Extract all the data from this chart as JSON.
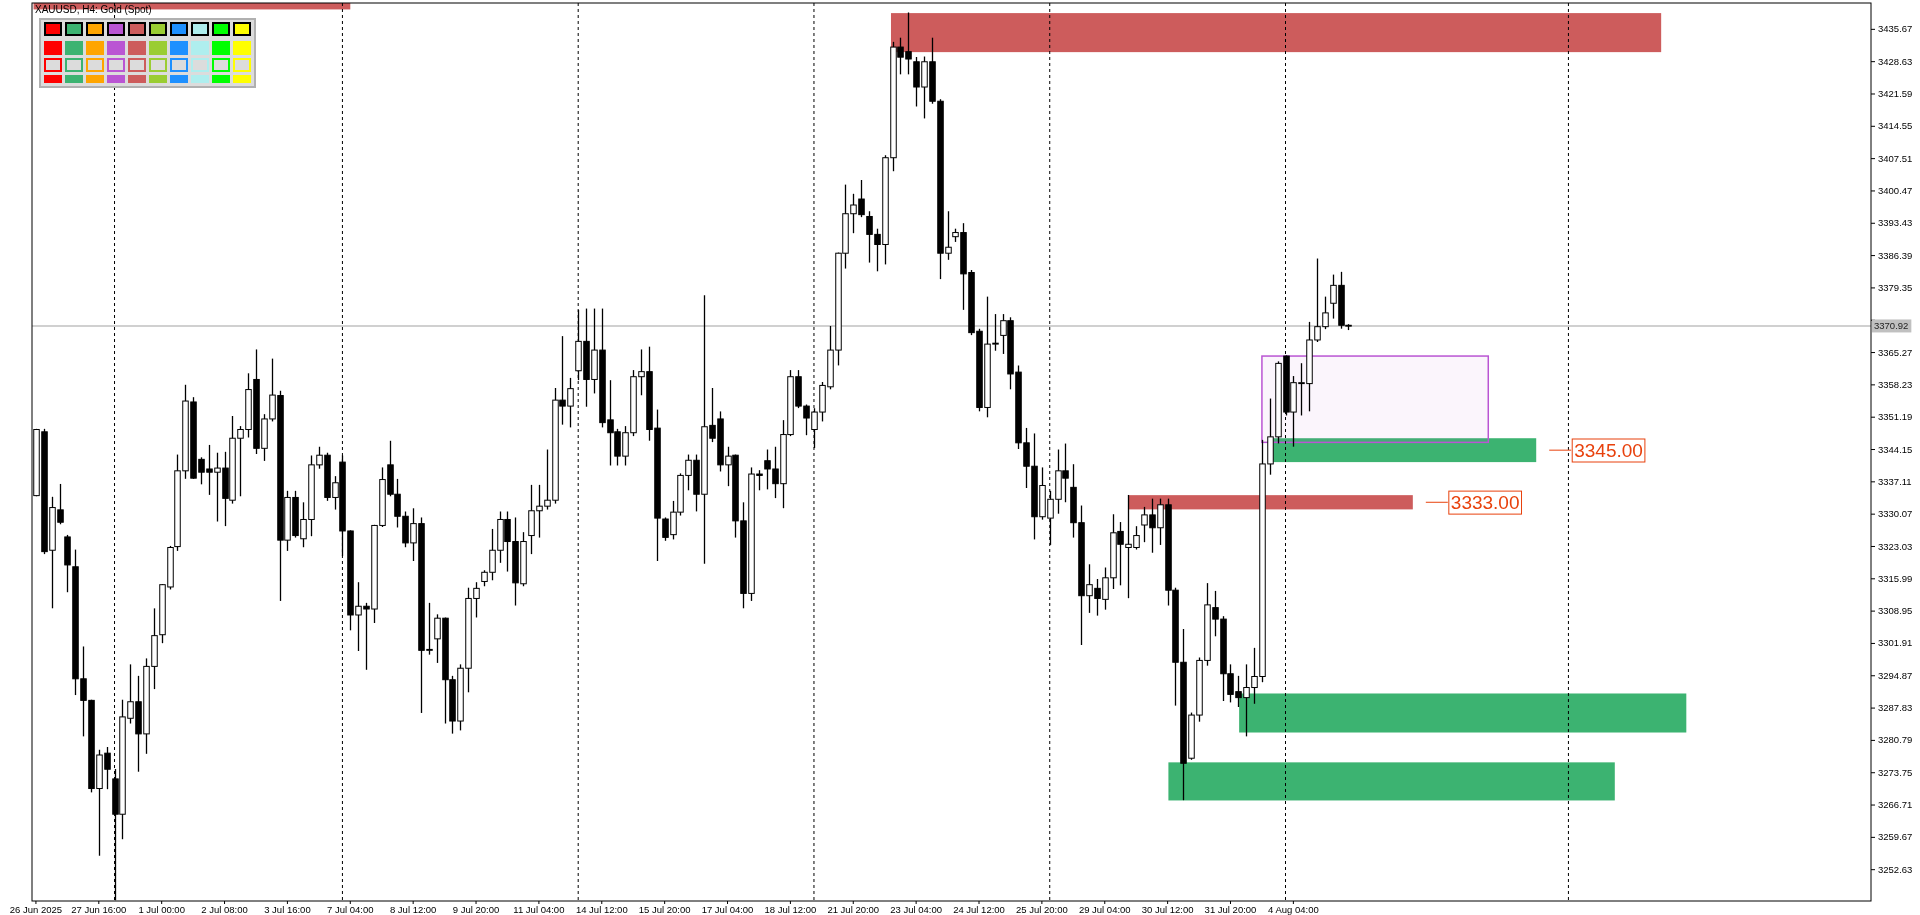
{
  "chart_data": {
    "type": "candlestick",
    "title": "XAUUSD, H4:  Gold (Spot)",
    "categories": [
      "26 Jun 2025",
      null,
      null,
      null,
      null,
      null,
      null,
      null,
      "27 Jun 16:00",
      null,
      null,
      null,
      null,
      null,
      null,
      null,
      "1 Jul 00:00",
      null,
      null,
      null,
      null,
      null,
      null,
      null,
      "2 Jul 08:00",
      null,
      null,
      null,
      null,
      null,
      null,
      null,
      "3 Jul 16:00",
      null,
      null,
      null,
      null,
      null,
      null,
      null,
      "7 Jul 04:00",
      null,
      null,
      null,
      null,
      null,
      null,
      null,
      "8 Jul 12:00",
      null,
      null,
      null,
      null,
      null,
      null,
      null,
      "9 Jul 20:00",
      null,
      null,
      null,
      null,
      null,
      null,
      null,
      "11 Jul 04:00",
      null,
      null,
      null,
      null,
      null,
      null,
      null,
      "14 Jul 12:00",
      null,
      null,
      null,
      null,
      null,
      null,
      null,
      "15 Jul 20:00",
      null,
      null,
      null,
      null,
      null,
      null,
      null,
      "17 Jul 04:00",
      null,
      null,
      null,
      null,
      null,
      null,
      null,
      "18 Jul 12:00",
      null,
      null,
      null,
      null,
      null,
      null,
      null,
      "21 Jul 20:00",
      null,
      null,
      null,
      null,
      null,
      null,
      null,
      "23 Jul 04:00",
      null,
      null,
      null,
      null,
      null,
      null,
      null,
      "24 Jul 12:00",
      null,
      null,
      null,
      null,
      null,
      null,
      null,
      "25 Jul 20:00",
      null,
      null,
      null,
      null,
      null,
      null,
      null,
      "29 Jul 04:00",
      null,
      null,
      null,
      null,
      null,
      null,
      null,
      "30 Jul 12:00",
      null,
      null,
      null,
      null,
      null,
      null,
      null,
      "31 Jul 20:00",
      null,
      null,
      null,
      null,
      null,
      null,
      null,
      "4 Aug 04:00",
      null,
      null,
      null,
      null,
      null,
      null,
      null,
      null,
      null,
      null,
      null,
      null,
      null,
      null,
      null,
      null,
      null,
      null,
      null,
      null,
      null,
      null,
      null,
      null,
      null,
      null,
      null,
      null,
      null,
      null,
      null,
      null,
      null,
      null,
      null,
      null,
      null,
      null,
      null,
      null,
      null,
      null,
      null,
      null,
      null,
      null,
      null,
      null,
      null,
      null,
      null,
      null,
      null,
      null,
      null,
      null,
      null,
      null,
      null,
      null,
      null,
      null,
      null,
      null,
      null,
      null,
      null,
      null,
      null,
      null,
      null,
      null,
      null
    ],
    "ohlc": [
      [
        3334.0,
        3348.4,
        3334.0,
        3348.4
      ],
      [
        3347.9,
        3348.4,
        3321.4,
        3321.8
      ],
      [
        3322.1,
        3333.6,
        3309.6,
        3331.4
      ],
      [
        3330.9,
        3336.4,
        3327.9,
        3328.2
      ],
      [
        3325.0,
        3325.3,
        3313.1,
        3318.9
      ],
      [
        3318.5,
        3322.1,
        3290.7,
        3294.1
      ],
      [
        3294.1,
        3301.0,
        3281.7,
        3289.4
      ],
      [
        3289.4,
        3289.4,
        3269.5,
        3270.2
      ],
      [
        3270.2,
        3278.5,
        3255.7,
        3277.5
      ],
      [
        3277.9,
        3279.1,
        3270.2,
        3274.4
      ],
      [
        3272.3,
        3274.3,
        3246.0,
        3264.6
      ],
      [
        3264.6,
        3289.4,
        3259.3,
        3285.8
      ],
      [
        3285.5,
        3297.1,
        3284.5,
        3289.1
      ],
      [
        3289.1,
        3294.6,
        3274.0,
        3282.1
      ],
      [
        3282.1,
        3298.4,
        3277.9,
        3296.8
      ],
      [
        3296.8,
        3309.3,
        3292.0,
        3303.5
      ],
      [
        3303.7,
        3314.6,
        3302.0,
        3314.6
      ],
      [
        3314.1,
        3322.9,
        3313.7,
        3322.7
      ],
      [
        3322.9,
        3342.8,
        3322.1,
        3339.4
      ],
      [
        3339.4,
        3358.0,
        3337.8,
        3354.6
      ],
      [
        3354.4,
        3355.3,
        3337.8,
        3337.8
      ],
      [
        3341.9,
        3342.2,
        3336.6,
        3339.1
      ],
      [
        3339.8,
        3344.9,
        3334.3,
        3339.1
      ],
      [
        3339.1,
        3343.2,
        3328.5,
        3340.0
      ],
      [
        3340.0,
        3343.4,
        3327.5,
        3333.4
      ],
      [
        3333.0,
        3351.2,
        3332.4,
        3346.5
      ],
      [
        3346.5,
        3349.0,
        3334.0,
        3348.4
      ],
      [
        3348.4,
        3360.5,
        3346.8,
        3357.1
      ],
      [
        3359.3,
        3365.7,
        3343.2,
        3344.3
      ],
      [
        3344.3,
        3351.6,
        3341.7,
        3350.7
      ],
      [
        3350.7,
        3363.7,
        3350.3,
        3355.9
      ],
      [
        3355.8,
        3356.7,
        3311.2,
        3324.3
      ],
      [
        3324.3,
        3334.9,
        3322.1,
        3333.6
      ],
      [
        3333.6,
        3334.9,
        3325.0,
        3325.3
      ],
      [
        3324.6,
        3332.4,
        3322.9,
        3328.8
      ],
      [
        3328.8,
        3342.6,
        3325.3,
        3340.7
      ],
      [
        3340.7,
        3344.5,
        3340.0,
        3342.8
      ],
      [
        3342.8,
        3343.2,
        3333.0,
        3333.6
      ],
      [
        3333.6,
        3338.1,
        3331.1,
        3336.8
      ],
      [
        3341.3,
        3342.6,
        3321.0,
        3326.3
      ],
      [
        3326.3,
        3326.3,
        3304.8,
        3308.0
      ],
      [
        3308.0,
        3315.0,
        3300.3,
        3309.9
      ],
      [
        3309.9,
        3310.5,
        3296.2,
        3309.3
      ],
      [
        3309.3,
        3327.5,
        3306.4,
        3327.5
      ],
      [
        3327.5,
        3340.0,
        3327.3,
        3337.5
      ],
      [
        3340.7,
        3345.8,
        3334.0,
        3334.3
      ],
      [
        3334.3,
        3337.5,
        3327.2,
        3329.5
      ],
      [
        3329.5,
        3330.4,
        3322.9,
        3323.7
      ],
      [
        3323.7,
        3331.1,
        3319.9,
        3327.9
      ],
      [
        3327.9,
        3329.1,
        3286.8,
        3300.3
      ],
      [
        3300.3,
        3310.5,
        3299.5,
        3300.5
      ],
      [
        3302.8,
        3308.0,
        3297.7,
        3307.3
      ],
      [
        3307.3,
        3307.3,
        3284.5,
        3293.9
      ],
      [
        3293.9,
        3294.6,
        3282.3,
        3284.9
      ],
      [
        3284.9,
        3297.1,
        3283.0,
        3296.4
      ],
      [
        3296.4,
        3313.8,
        3291.3,
        3311.6
      ],
      [
        3311.6,
        3315.0,
        3307.6,
        3313.8
      ],
      [
        3315.3,
        3317.6,
        3314.4,
        3317.3
      ],
      [
        3317.3,
        3326.6,
        3315.7,
        3322.1
      ],
      [
        3322.1,
        3330.4,
        3319.5,
        3328.8
      ],
      [
        3328.8,
        3330.4,
        3317.6,
        3324.0
      ],
      [
        3324.0,
        3329.1,
        3310.2,
        3315.0
      ],
      [
        3314.8,
        3325.9,
        3314.4,
        3324.0
      ],
      [
        3325.3,
        3336.2,
        3321.4,
        3330.7
      ],
      [
        3330.7,
        3336.2,
        3325.0,
        3331.7
      ],
      [
        3331.7,
        3343.9,
        3331.1,
        3333.0
      ],
      [
        3333.0,
        3357.3,
        3332.4,
        3354.8
      ],
      [
        3354.8,
        3368.6,
        3349.6,
        3353.5
      ],
      [
        3353.5,
        3359.5,
        3349.0,
        3357.3
      ],
      [
        3361.2,
        3374.3,
        3359.3,
        3367.6
      ],
      [
        3367.6,
        3374.6,
        3353.5,
        3359.3
      ],
      [
        3359.3,
        3374.6,
        3356.4,
        3365.7
      ],
      [
        3365.7,
        3374.6,
        3349.0,
        3349.9
      ],
      [
        3350.5,
        3359.0,
        3340.7,
        3347.7
      ],
      [
        3347.9,
        3348.4,
        3340.7,
        3342.6
      ],
      [
        3342.6,
        3349.0,
        3340.7,
        3347.7
      ],
      [
        3347.7,
        3361.2,
        3347.1,
        3359.9
      ],
      [
        3359.9,
        3365.7,
        3356.0,
        3361.0
      ],
      [
        3361.0,
        3366.3,
        3346.1,
        3348.4
      ],
      [
        3348.7,
        3352.6,
        3319.9,
        3329.1
      ],
      [
        3328.9,
        3329.1,
        3324.3,
        3324.9
      ],
      [
        3325.5,
        3332.7,
        3324.6,
        3330.4
      ],
      [
        3330.4,
        3338.7,
        3329.8,
        3338.4
      ],
      [
        3338.4,
        3342.8,
        3335.3,
        3341.7
      ],
      [
        3341.7,
        3342.8,
        3330.7,
        3334.3
      ],
      [
        3334.3,
        3377.5,
        3319.3,
        3349.0
      ],
      [
        3349.3,
        3357.3,
        3345.8,
        3346.5
      ],
      [
        3350.7,
        3352.2,
        3339.4,
        3340.7
      ],
      [
        3340.7,
        3344.5,
        3336.2,
        3342.6
      ],
      [
        3342.8,
        3342.8,
        3325.0,
        3328.5
      ],
      [
        3328.5,
        3332.4,
        3309.6,
        3312.7
      ],
      [
        3312.7,
        3340.0,
        3311.2,
        3338.7
      ],
      [
        3338.7,
        3339.4,
        3335.3,
        3338.4
      ],
      [
        3341.6,
        3343.9,
        3335.5,
        3339.8
      ],
      [
        3339.8,
        3344.5,
        3333.6,
        3336.6
      ],
      [
        3336.6,
        3350.3,
        3331.4,
        3347.3
      ],
      [
        3347.3,
        3361.2,
        3347.1,
        3359.9
      ],
      [
        3359.9,
        3361.2,
        3353.2,
        3353.5
      ],
      [
        3353.5,
        3353.7,
        3347.3,
        3350.9
      ],
      [
        3348.4,
        3352.9,
        3344.5,
        3352.2
      ],
      [
        3352.2,
        3358.6,
        3350.3,
        3358.0
      ],
      [
        3357.7,
        3370.8,
        3357.3,
        3365.7
      ],
      [
        3365.7,
        3386.8,
        3362.5,
        3386.8
      ],
      [
        3386.8,
        3401.6,
        3383.6,
        3395.4
      ],
      [
        3395.4,
        3399.6,
        3391.3,
        3397.3
      ],
      [
        3398.6,
        3402.6,
        3394.8,
        3395.2
      ],
      [
        3394.8,
        3395.8,
        3384.9,
        3390.9
      ],
      [
        3390.9,
        3392.0,
        3383.0,
        3388.7
      ],
      [
        3388.7,
        3408.0,
        3384.5,
        3407.6
      ],
      [
        3407.6,
        3432.7,
        3404.8,
        3431.7
      ],
      [
        3431.7,
        3433.6,
        3425.9,
        3429.5
      ],
      [
        3430.7,
        3439.1,
        3425.9,
        3429.1
      ],
      [
        3428.5,
        3429.4,
        3418.9,
        3423.0
      ],
      [
        3423.0,
        3429.5,
        3416.3,
        3428.5
      ],
      [
        3428.5,
        3433.6,
        3419.5,
        3419.9
      ],
      [
        3419.9,
        3420.2,
        3381.3,
        3386.8
      ],
      [
        3386.8,
        3395.8,
        3385.5,
        3388.1
      ],
      [
        3390.4,
        3392.0,
        3389.4,
        3391.3
      ],
      [
        3391.3,
        3393.2,
        3374.6,
        3382.3
      ],
      [
        3382.6,
        3383.0,
        3369.1,
        3369.5
      ],
      [
        3369.8,
        3370.2,
        3352.5,
        3353.2
      ],
      [
        3353.2,
        3377.2,
        3351.2,
        3367.0
      ],
      [
        3367.0,
        3373.4,
        3365.7,
        3367.2
      ],
      [
        3368.9,
        3373.4,
        3365.0,
        3372.1
      ],
      [
        3372.1,
        3372.7,
        3357.3,
        3360.5
      ],
      [
        3360.9,
        3362.2,
        3344.3,
        3345.5
      ],
      [
        3345.5,
        3348.6,
        3335.8,
        3340.4
      ],
      [
        3340.4,
        3347.4,
        3324.6,
        3329.4
      ],
      [
        3329.4,
        3340.0,
        3328.9,
        3336.2
      ],
      [
        3329.1,
        3334.9,
        3323.4,
        3333.2
      ],
      [
        3333.2,
        3343.9,
        3330.2,
        3339.4
      ],
      [
        3339.4,
        3345.2,
        3332.7,
        3337.8
      ],
      [
        3335.8,
        3340.7,
        3325.0,
        3328.1
      ],
      [
        3328.1,
        3331.7,
        3301.6,
        3312.2
      ],
      [
        3312.2,
        3318.9,
        3308.6,
        3314.6
      ],
      [
        3313.8,
        3315.7,
        3308.0,
        3311.6
      ],
      [
        3311.4,
        3318.2,
        3309.3,
        3316.1
      ],
      [
        3316.1,
        3329.8,
        3313.8,
        3325.9
      ],
      [
        3326.2,
        3328.1,
        3314.6,
        3323.4
      ],
      [
        3322.7,
        3334.0,
        3311.8,
        3323.4
      ],
      [
        3322.7,
        3327.2,
        3322.4,
        3325.3
      ],
      [
        3327.6,
        3331.4,
        3324.0,
        3329.8
      ],
      [
        3329.8,
        3333.2,
        3321.7,
        3327.0
      ],
      [
        3327.0,
        3333.2,
        3323.4,
        3332.0
      ],
      [
        3332.0,
        3333.2,
        3310.2,
        3313.4
      ],
      [
        3313.4,
        3313.8,
        3288.4,
        3297.7
      ],
      [
        3297.7,
        3304.8,
        3267.8,
        3275.7
      ],
      [
        3276.8,
        3286.6,
        3276.6,
        3286.2
      ],
      [
        3286.2,
        3298.6,
        3284.9,
        3298.1
      ],
      [
        3298.1,
        3314.8,
        3297.1,
        3310.2
      ],
      [
        3309.6,
        3313.1,
        3303.5,
        3307.1
      ],
      [
        3307.1,
        3307.6,
        3289.4,
        3295.2
      ],
      [
        3295.2,
        3297.1,
        3289.1,
        3290.7
      ],
      [
        3291.3,
        3294.6,
        3288.1,
        3290.0
      ],
      [
        3290.0,
        3297.1,
        3281.7,
        3292.2
      ],
      [
        3292.2,
        3300.7,
        3288.8,
        3294.6
      ],
      [
        3294.6,
        3346.0,
        3293.5,
        3340.9
      ],
      [
        3340.9,
        3355.0,
        3338.7,
        3346.8
      ],
      [
        3346.8,
        3363.1,
        3345.5,
        3362.8
      ],
      [
        3364.4,
        3364.4,
        3351.6,
        3352.2
      ],
      [
        3352.2,
        3359.9,
        3344.8,
        3358.6
      ],
      [
        3358.4,
        3362.7,
        3351.6,
        3358.6
      ],
      [
        3358.4,
        3371.7,
        3352.5,
        3367.9
      ],
      [
        3367.9,
        3385.5,
        3367.6,
        3370.8
      ],
      [
        3370.8,
        3377.2,
        3370.4,
        3373.8
      ],
      [
        3375.9,
        3382.0,
        3372.7,
        3379.8
      ],
      [
        3379.8,
        3382.6,
        3370.5,
        3371.1
      ],
      [
        3371.1,
        3371.2,
        3370.2,
        3370.92
      ],
      null,
      null,
      null,
      null,
      null,
      null,
      null,
      null,
      null,
      null,
      null,
      null,
      null,
      null,
      null,
      null,
      null,
      null,
      null,
      null,
      null,
      null,
      null,
      null,
      null,
      null,
      null,
      null,
      null,
      null,
      null,
      null,
      null,
      null,
      null,
      null,
      null,
      null,
      null,
      null,
      null,
      null,
      null,
      null,
      null,
      null,
      null,
      null,
      null,
      null,
      null,
      null,
      null,
      null,
      null,
      null,
      null,
      null,
      null,
      null,
      null,
      null,
      null,
      null,
      null,
      null
    ],
    "ylim": [
      3245.7,
      3441.3
    ],
    "yticks": [
      3252.63,
      3259.67,
      3266.71,
      3273.75,
      3280.79,
      3287.83,
      3294.87,
      3301.91,
      3308.95,
      3315.99,
      3323.03,
      3330.07,
      3337.11,
      3344.15,
      3351.19,
      3358.23,
      3365.27,
      {
        "value": 3372.31,
        "label": null
      },
      3379.35,
      3386.39,
      3393.43,
      3400.47,
      3407.51,
      3414.55,
      3421.59,
      3428.63,
      3435.67
    ],
    "bands": [
      {
        "axis": "y",
        "from": 3439.9,
        "to": 3441.3,
        "color": "#cd5c5c"
      },
      {
        "axis": "y",
        "from": 3430.6,
        "to": 3439.1,
        "color": "#cd5c5c"
      },
      {
        "axis": "y",
        "from": 3331.0,
        "to": 3334.1,
        "color": "#cd5c5c",
        "label": "3333.00"
      },
      {
        "axis": "y",
        "from": 3341.3,
        "to": 3346.5,
        "color": "#3cb371",
        "label": "3345.00"
      },
      {
        "axis": "y",
        "from": 3345.6,
        "to": 3364.4,
        "color": "#ba55d3"
      },
      {
        "axis": "y",
        "from": 3282.4,
        "to": 3290.9,
        "color": "#3cb371"
      },
      {
        "axis": "y",
        "from": 3267.6,
        "to": 3275.9,
        "color": "#3cb371"
      }
    ],
    "ref_lines": [
      {
        "axis": "y",
        "value": 3370.92,
        "label": "3370.92",
        "color": "#c0c0c0",
        "line_style": "solid"
      }
    ],
    "grid": false
  }
}
